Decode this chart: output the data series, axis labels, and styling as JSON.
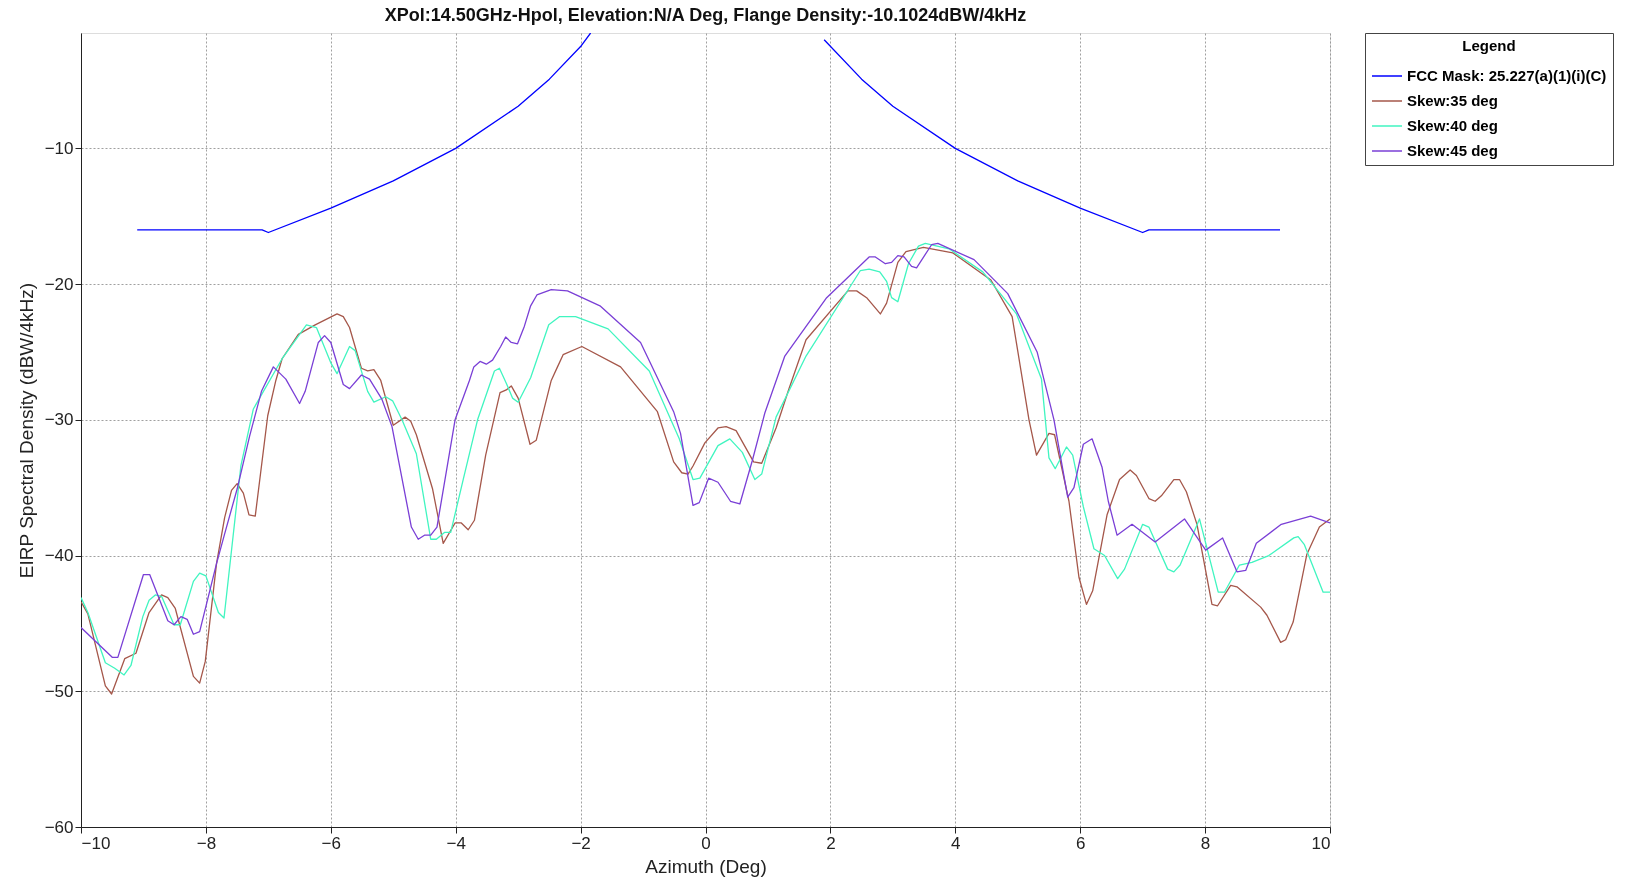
{
  "chart_data": {
    "type": "line",
    "title": "XPol:14.50GHz-Hpol, Elevation:N/A Deg, Flange Density:-10.1024dBW/4kHz",
    "xlabel": "Azimuth (Deg)",
    "ylabel": "EIRP Spectral Density (dBW/4kHz)",
    "legend_title": "Legend",
    "legend": "top right",
    "grid": true,
    "line_style": "solid",
    "xlim": [
      -10,
      10
    ],
    "ylim": [
      -60,
      -1.5
    ],
    "xticks": [
      -10,
      -8,
      -6,
      -4,
      -2,
      0,
      2,
      4,
      6,
      8,
      10
    ],
    "yticks": [
      -60,
      -50,
      -40,
      -30,
      -20,
      -10
    ],
    "series": [
      {
        "name": "FCC Mask: 25.227(a)(1)(i)(C)",
        "color": "#0000ff",
        "x": [
          -9.1,
          -7.1,
          -7,
          -6,
          -5,
          -4,
          -3,
          -2.5,
          -2,
          -1.84,
          0,
          1.9,
          2.5,
          3,
          4,
          5,
          6,
          7,
          7.1,
          9.2
        ],
        "values": [
          -16,
          -16,
          -16.2,
          -14.4,
          -12.4,
          -10,
          -6.9,
          -4.9,
          -2.5,
          -1.5,
          null,
          -2.0,
          -4.9,
          -6.9,
          -10,
          -12.4,
          -14.4,
          -16.2,
          -16,
          -16
        ]
      },
      {
        "name": "Skew:35 deg",
        "color": "#a5574a",
        "x": [
          -10,
          -9.89,
          -9.61,
          -9.51,
          -9.3,
          -9.12,
          -8.91,
          -8.71,
          -8.61,
          -8.49,
          -8.2,
          -8.1,
          -8.01,
          -7.83,
          -7.7,
          -7.59,
          -7.5,
          -7.4,
          -7.31,
          -7.21,
          -7.01,
          -6.88,
          -6.78,
          -6.52,
          -6.25,
          -5.9,
          -5.8,
          -5.7,
          -5.51,
          -5.41,
          -5.31,
          -5.2,
          -5.0,
          -4.81,
          -4.72,
          -4.63,
          -4.37,
          -4.2,
          -4.01,
          -3.91,
          -3.8,
          -3.7,
          -3.52,
          -3.29,
          -3.19,
          -3.11,
          -3.0,
          -2.81,
          -2.71,
          -2.47,
          -2.37,
          -2.28,
          -1.98,
          -1.36,
          -0.77,
          -0.51,
          -0.38,
          -0.28,
          -0.2,
          -0.01,
          0.2,
          0.33,
          0.49,
          0.77,
          0.9,
          1.13,
          1.33,
          1.61,
          2.28,
          2.42,
          2.58,
          2.8,
          2.9,
          3.08,
          3.21,
          3.49,
          3.96,
          4.57,
          4.91,
          5.18,
          5.3,
          5.5,
          5.59,
          5.82,
          5.98,
          6.1,
          6.2,
          6.43,
          6.63,
          6.8,
          6.9,
          7.1,
          7.2,
          7.3,
          7.5,
          7.59,
          7.7,
          7.87,
          8.11,
          8.2,
          8.41,
          8.51,
          8.89,
          8.99,
          9.21,
          9.29,
          9.41,
          9.63,
          9.83,
          10
        ],
        "values": [
          -43.4,
          -44.3,
          -49.6,
          -50.2,
          -47.6,
          -47.2,
          -44.2,
          -42.9,
          -43.1,
          -43.9,
          -48.9,
          -49.4,
          -47.8,
          -40.6,
          -37.2,
          -35.2,
          -34.7,
          -35.4,
          -37.0,
          -37.1,
          -29.7,
          -27.1,
          -25.5,
          -23.7,
          -23.0,
          -22.2,
          -22.4,
          -23.2,
          -26.2,
          -26.4,
          -26.3,
          -27.1,
          -30.4,
          -29.8,
          -30.1,
          -31.1,
          -35.1,
          -39.1,
          -37.6,
          -37.6,
          -38.1,
          -37.4,
          -32.6,
          -28.0,
          -27.8,
          -27.5,
          -28.4,
          -31.8,
          -31.5,
          -27.1,
          -26.1,
          -25.2,
          -24.6,
          -26.1,
          -29.4,
          -33.1,
          -33.9,
          -34.0,
          -33.4,
          -31.7,
          -30.6,
          -30.5,
          -30.8,
          -33.1,
          -33.2,
          -30.6,
          -27.8,
          -24.1,
          -20.5,
          -20.5,
          -21.0,
          -22.2,
          -21.4,
          -18.4,
          -17.6,
          -17.3,
          -17.7,
          -19.7,
          -22.4,
          -30.0,
          -32.6,
          -31.0,
          -31.1,
          -36.0,
          -41.6,
          -43.6,
          -42.6,
          -37.0,
          -34.4,
          -33.7,
          -34.1,
          -35.8,
          -36.0,
          -35.6,
          -34.4,
          -34.4,
          -35.3,
          -37.7,
          -43.6,
          -43.7,
          -42.2,
          -42.3,
          -43.8,
          -44.4,
          -46.4,
          -46.2,
          -44.9,
          -39.9,
          -37.9,
          -37.3
        ]
      },
      {
        "name": "Skew:40 deg",
        "color": "#40f5c0",
        "x": [
          -10,
          -9.89,
          -9.61,
          -9.46,
          -9.31,
          -9.2,
          -9.01,
          -8.91,
          -8.81,
          -8.71,
          -8.51,
          -8.41,
          -8.2,
          -8.1,
          -8.0,
          -7.8,
          -7.71,
          -7.44,
          -7.24,
          -6.78,
          -6.39,
          -6.23,
          -6.0,
          -5.9,
          -5.7,
          -5.61,
          -5.41,
          -5.31,
          -5.12,
          -5.01,
          -4.86,
          -4.63,
          -4.4,
          -4.31,
          -4.18,
          -4.08,
          -3.88,
          -3.65,
          -3.38,
          -3.3,
          -3.19,
          -3.09,
          -3.0,
          -2.8,
          -2.51,
          -2.34,
          -2.08,
          -1.56,
          -0.9,
          -0.42,
          -0.2,
          -0.09,
          0.2,
          0.39,
          0.59,
          0.79,
          0.9,
          1.13,
          1.61,
          2.48,
          2.62,
          2.79,
          2.9,
          2.98,
          3.08,
          3.25,
          3.41,
          3.52,
          3.9,
          4.44,
          4.98,
          5.38,
          5.5,
          5.6,
          5.78,
          5.88,
          6.05,
          6.22,
          6.39,
          6.6,
          6.71,
          7.0,
          7.1,
          7.4,
          7.5,
          7.6,
          7.91,
          8.21,
          8.31,
          8.55,
          8.75,
          9.02,
          9.42,
          9.49,
          9.59,
          9.89,
          10
        ],
        "values": [
          -43.1,
          -44.2,
          -47.9,
          -48.3,
          -48.8,
          -48.1,
          -44.5,
          -43.3,
          -42.9,
          -43.0,
          -45.1,
          -45.1,
          -41.9,
          -41.3,
          -41.5,
          -44.2,
          -44.6,
          -33.4,
          -29.2,
          -25.5,
          -23.0,
          -23.2,
          -25.8,
          -26.6,
          -24.6,
          -24.9,
          -27.9,
          -28.7,
          -28.3,
          -28.6,
          -30.0,
          -32.5,
          -38.8,
          -38.8,
          -38.3,
          -38.3,
          -34.4,
          -30.0,
          -26.4,
          -26.2,
          -27.3,
          -28.4,
          -28.7,
          -26.9,
          -23.0,
          -22.4,
          -22.4,
          -23.3,
          -26.4,
          -31.4,
          -34.4,
          -34.3,
          -31.9,
          -31.4,
          -32.4,
          -34.4,
          -34.0,
          -29.8,
          -25.3,
          -19.0,
          -18.9,
          -19.1,
          -19.8,
          -21.0,
          -21.3,
          -18.5,
          -17.2,
          -17.0,
          -17.4,
          -19.1,
          -22.2,
          -27.0,
          -32.8,
          -33.6,
          -32.0,
          -32.6,
          -36.4,
          -39.5,
          -40.0,
          -41.7,
          -41.0,
          -37.7,
          -37.9,
          -41.0,
          -41.2,
          -40.7,
          -37.3,
          -42.7,
          -42.7,
          -40.7,
          -40.5,
          -40.0,
          -38.7,
          -38.6,
          -39.2,
          -42.7,
          -42.7
        ]
      },
      {
        "name": "Skew:45 deg",
        "color": "#7a3fd6",
        "x": [
          -10,
          -9.5,
          -9.41,
          -9.0,
          -8.9,
          -8.61,
          -8.51,
          -8.4,
          -8.3,
          -8.2,
          -8.1,
          -7.83,
          -7.7,
          -7.5,
          -7.3,
          -7.11,
          -6.92,
          -6.72,
          -6.5,
          -6.41,
          -6.2,
          -6.1,
          -6.0,
          -5.8,
          -5.7,
          -5.51,
          -5.38,
          -5.18,
          -5.02,
          -4.71,
          -4.6,
          -4.5,
          -4.4,
          -4.3,
          -4.01,
          -3.78,
          -3.71,
          -3.61,
          -3.51,
          -3.41,
          -3.28,
          -3.2,
          -3.11,
          -3.01,
          -2.9,
          -2.8,
          -2.7,
          -2.47,
          -2.21,
          -1.69,
          -1.04,
          -0.51,
          -0.4,
          -0.25,
          -0.2,
          -0.1,
          0.05,
          0.2,
          0.4,
          0.55,
          0.75,
          0.95,
          1.27,
          1.94,
          2.62,
          2.72,
          2.88,
          2.98,
          3.08,
          3.18,
          3.3,
          3.38,
          3.62,
          3.72,
          4.3,
          4.84,
          5.31,
          5.58,
          5.8,
          5.9,
          6.05,
          6.19,
          6.35,
          6.45,
          6.59,
          6.83,
          7.2,
          7.67,
          8.01,
          8.28,
          8.51,
          8.65,
          8.82,
          9.22,
          9.69,
          10
        ],
        "values": [
          -45.3,
          -47.5,
          -47.5,
          -41.4,
          -41.4,
          -44.8,
          -45.1,
          -44.5,
          -44.7,
          -45.8,
          -45.6,
          -40.6,
          -38.4,
          -35.1,
          -31.2,
          -27.9,
          -26.1,
          -27.0,
          -28.8,
          -27.9,
          -24.3,
          -23.8,
          -24.3,
          -27.4,
          -27.7,
          -26.7,
          -27.0,
          -28.5,
          -30.5,
          -37.9,
          -38.8,
          -38.5,
          -38.5,
          -37.9,
          -30.0,
          -27.1,
          -26.1,
          -25.7,
          -25.9,
          -25.6,
          -24.6,
          -23.9,
          -24.3,
          -24.4,
          -23.1,
          -21.6,
          -20.8,
          -20.4,
          -20.5,
          -21.6,
          -24.3,
          -29.4,
          -31.0,
          -35.0,
          -36.3,
          -36.1,
          -34.3,
          -34.6,
          -36.0,
          -36.2,
          -33.0,
          -29.5,
          -25.3,
          -21.0,
          -18.0,
          -18.0,
          -18.5,
          -18.4,
          -17.9,
          -18.0,
          -18.7,
          -18.8,
          -17.1,
          -17.0,
          -18.2,
          -20.7,
          -25.0,
          -30.0,
          -35.7,
          -35.0,
          -31.8,
          -31.4,
          -33.5,
          -36.0,
          -38.5,
          -37.7,
          -39.0,
          -37.3,
          -39.6,
          -38.7,
          -41.2,
          -41.1,
          -39.1,
          -37.7,
          -37.1,
          -37.6
        ]
      }
    ]
  }
}
